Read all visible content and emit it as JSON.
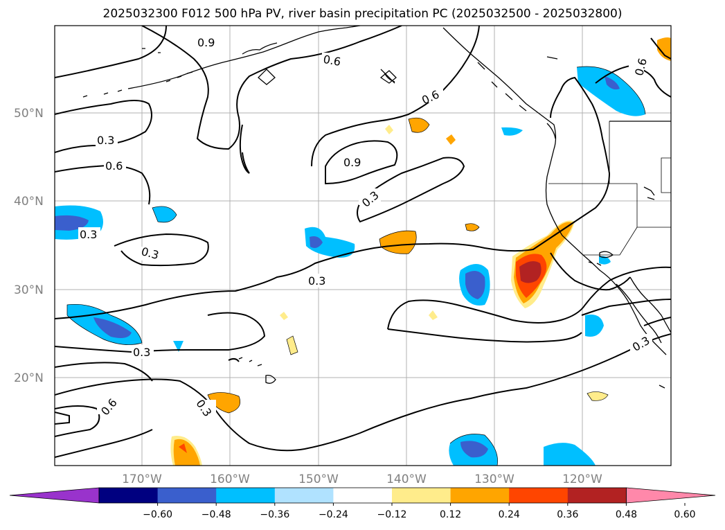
{
  "title": "2025032300 F012 500 hPa PV, river basin precipitation PC (2025032500 - 2025032800)",
  "map": {
    "lat_labels": [
      "50°N",
      "40°N",
      "30°N",
      "20°N"
    ],
    "lon_labels": [
      "170°W",
      "160°W",
      "150°W",
      "140°W",
      "130°W",
      "120°W"
    ],
    "contour_labels": [
      "0.9",
      "0.6",
      "0.6",
      "0.6",
      "0.3",
      "0.6",
      "0.9",
      "0.3",
      "0.3",
      "0.3",
      "0.3",
      "0.3",
      "0.6",
      "0.3",
      "0.3"
    ]
  },
  "colorbar": {
    "ticks": [
      "−0.60",
      "−0.48",
      "−0.36",
      "−0.24",
      "−0.12",
      "0.12",
      "0.24",
      "0.36",
      "0.48",
      "0.60"
    ],
    "colors": [
      "#9933cc",
      "#000080",
      "#3a5fcd",
      "#00bfff",
      "#b0e2ff",
      "#ffffff",
      "#ffec8b",
      "#ffa500",
      "#ff4500",
      "#b22222",
      "#ff88aa"
    ]
  }
}
